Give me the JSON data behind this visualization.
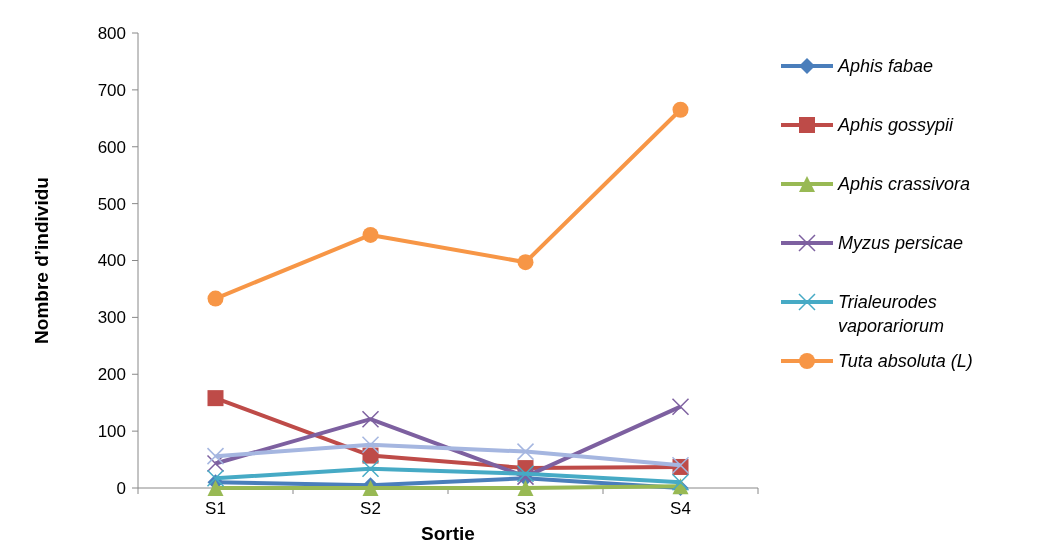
{
  "chart_data": {
    "type": "line",
    "xlabel": "Sortie",
    "ylabel": "Nombre d’individu",
    "categories": [
      "S1",
      "S2",
      "S3",
      "S4"
    ],
    "ylim": [
      0,
      800
    ],
    "yticks": [
      0,
      100,
      200,
      300,
      400,
      500,
      600,
      700,
      800
    ],
    "grid": false,
    "legend": "right",
    "series": [
      {
        "name": "Aphis fabae",
        "color": "#4a7ebb",
        "marker": "diamond",
        "values": [
          10,
          5,
          17,
          0
        ]
      },
      {
        "name": "Aphis gossypii",
        "color": "#be4b48",
        "marker": "square",
        "values": [
          158,
          57,
          35,
          37
        ]
      },
      {
        "name": "Aphis crassivora",
        "color": "#98b954",
        "marker": "triangle",
        "values": [
          0,
          0,
          0,
          3
        ]
      },
      {
        "name": "Myzus persicae",
        "color": "#7d60a0",
        "marker": "cross",
        "values": [
          43,
          121,
          20,
          143
        ]
      },
      {
        "name": "Trialeurodes vaporariorum",
        "color": "#46aac5",
        "marker": "cross",
        "values": [
          17,
          34,
          25,
          10
        ]
      },
      {
        "name": "Tuta absoluta (L)",
        "color": "#f79646",
        "marker": "circle",
        "values": [
          333,
          445,
          397,
          665
        ]
      },
      {
        "color": "#a5b6e0",
        "marker": "cross",
        "values": [
          56,
          76,
          64,
          40
        ]
      }
    ]
  }
}
